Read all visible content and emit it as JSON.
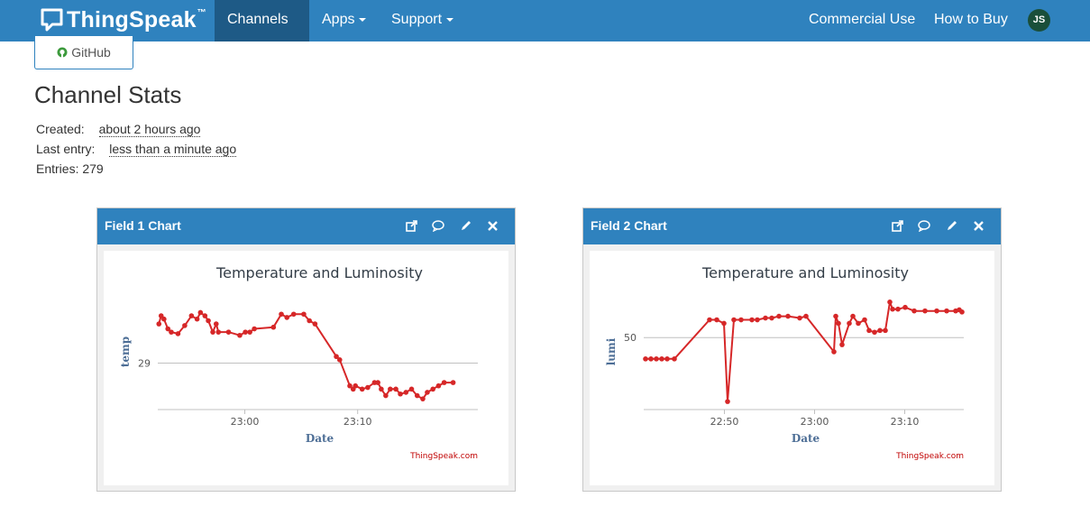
{
  "navbar": {
    "brand": "ThingSpeak",
    "brand_tm": "™",
    "items": [
      {
        "label": "Channels",
        "active": true
      },
      {
        "label": "Apps"
      },
      {
        "label": "Support"
      }
    ],
    "right_items": [
      {
        "label": "Commercial Use"
      },
      {
        "label": "How to Buy"
      }
    ],
    "avatar_initials": "JS"
  },
  "github_button": {
    "label": "GitHub"
  },
  "stats": {
    "title": "Channel Stats",
    "created_label": "Created:",
    "created_value": "about 2 hours ago",
    "last_entry_label": "Last entry:",
    "last_entry_value": "less than a minute ago",
    "entries_label": "Entries:",
    "entries_value": "279"
  },
  "colors": {
    "nav": "#2f82be",
    "line": "#d62728"
  },
  "panels": [
    {
      "title": "Field 1 Chart",
      "tool_icons": [
        "external-link-icon",
        "comment-icon",
        "pencil-icon",
        "close-icon"
      ],
      "chart_data": {
        "type": "line",
        "title": "Temperature and Luminosity",
        "xlabel": "Date",
        "ylabel": "temp",
        "x_ticks": [
          "23:00",
          "23:10"
        ],
        "y_ticks": [
          29
        ],
        "credit": "ThingSpeak.com",
        "x_range_min": [
          0,
          28.5
        ],
        "x_tick_pos": [
          7.75,
          17.8
        ],
        "y_range": [
          27.6,
          31.2
        ],
        "series": [
          {
            "points": [
              [
                0.1,
                30.2
              ],
              [
                0.3,
                30.45
              ],
              [
                0.55,
                30.35
              ],
              [
                0.9,
                30.05
              ],
              [
                1.2,
                29.95
              ],
              [
                1.8,
                29.9
              ],
              [
                2.4,
                30.15
              ],
              [
                3.0,
                30.45
              ],
              [
                3.5,
                30.35
              ],
              [
                3.8,
                30.55
              ],
              [
                4.2,
                30.45
              ],
              [
                4.5,
                30.3
              ],
              [
                4.9,
                29.95
              ],
              [
                5.2,
                30.2
              ],
              [
                5.4,
                29.95
              ],
              [
                6.3,
                29.95
              ],
              [
                7.3,
                29.85
              ],
              [
                7.8,
                29.95
              ],
              [
                8.2,
                29.95
              ],
              [
                8.6,
                30.05
              ],
              [
                10.3,
                30.1
              ],
              [
                11.0,
                30.5
              ],
              [
                11.5,
                30.4
              ],
              [
                12.1,
                30.5
              ],
              [
                13.0,
                30.5
              ],
              [
                13.5,
                30.3
              ],
              [
                14.0,
                30.2
              ],
              [
                15.9,
                29.2
              ],
              [
                16.2,
                29.1
              ],
              [
                17.1,
                28.3
              ],
              [
                17.4,
                28.2
              ],
              [
                17.6,
                28.3
              ],
              [
                18.2,
                28.2
              ],
              [
                18.7,
                28.25
              ],
              [
                19.3,
                28.4
              ],
              [
                19.6,
                28.4
              ],
              [
                19.9,
                28.2
              ],
              [
                20.3,
                28.0
              ],
              [
                20.7,
                28.2
              ],
              [
                21.2,
                28.2
              ],
              [
                21.6,
                28.05
              ],
              [
                22.1,
                28.1
              ],
              [
                22.6,
                28.2
              ],
              [
                23.1,
                28.0
              ],
              [
                23.6,
                27.9
              ],
              [
                24.0,
                28.1
              ],
              [
                24.5,
                28.2
              ],
              [
                25.0,
                28.3
              ],
              [
                25.5,
                28.4
              ],
              [
                26.3,
                28.4
              ]
            ]
          }
        ]
      }
    },
    {
      "title": "Field 2 Chart",
      "tool_icons": [
        "external-link-icon",
        "comment-icon",
        "pencil-icon",
        "close-icon"
      ],
      "chart_data": {
        "type": "line",
        "title": "Temperature and Luminosity",
        "xlabel": "Date",
        "ylabel": "lumi",
        "x_ticks": [
          "22:50",
          "23:00",
          "23:10"
        ],
        "y_ticks": [
          50
        ],
        "credit": "ThingSpeak.com",
        "x_range_min": [
          0,
          35.5
        ],
        "x_tick_pos": [
          8.95,
          18.95,
          28.95
        ],
        "y_range": [
          30,
          63
        ],
        "series": [
          {
            "points": [
              [
                0.2,
                44
              ],
              [
                0.8,
                44
              ],
              [
                1.4,
                44
              ],
              [
                2.0,
                44
              ],
              [
                2.6,
                44
              ],
              [
                3.4,
                44
              ],
              [
                7.3,
                55
              ],
              [
                8.1,
                55
              ],
              [
                8.9,
                54
              ],
              [
                9.3,
                32
              ],
              [
                10.0,
                55
              ],
              [
                10.8,
                55
              ],
              [
                12.0,
                55
              ],
              [
                12.6,
                55
              ],
              [
                13.5,
                55.5
              ],
              [
                14.2,
                55.5
              ],
              [
                15.0,
                56
              ],
              [
                16.0,
                56
              ],
              [
                17.3,
                55.5
              ],
              [
                18.0,
                56
              ],
              [
                21.1,
                46
              ],
              [
                21.3,
                56
              ],
              [
                21.6,
                54
              ],
              [
                22.0,
                48
              ],
              [
                22.8,
                54
              ],
              [
                23.2,
                56
              ],
              [
                23.8,
                54
              ],
              [
                24.5,
                55
              ],
              [
                25.0,
                52
              ],
              [
                25.6,
                51.5
              ],
              [
                26.2,
                52
              ],
              [
                26.8,
                52
              ],
              [
                27.3,
                60
              ],
              [
                27.6,
                58
              ],
              [
                28.2,
                58
              ],
              [
                29.0,
                58.5
              ],
              [
                30.0,
                57.5
              ],
              [
                31.2,
                57.5
              ],
              [
                32.5,
                57.5
              ],
              [
                33.6,
                57.5
              ],
              [
                34.6,
                57.5
              ],
              [
                35.0,
                57.8
              ],
              [
                35.3,
                57.2
              ]
            ]
          }
        ]
      }
    }
  ]
}
